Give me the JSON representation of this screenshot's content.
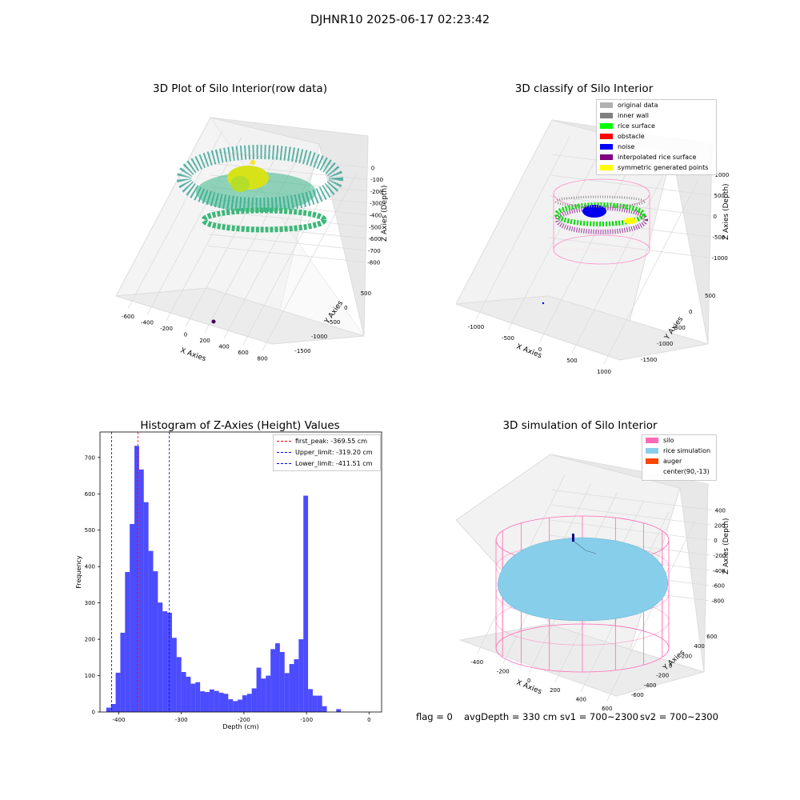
{
  "suptitle": "DJHNR10 2025-06-17 02:23:42",
  "panels": {
    "raw": {
      "title": "3D Plot of Silo Interior(row data)",
      "xlabel": "X Axies",
      "ylabel": "Y Axies",
      "zlabel": "Z Axies (Depth)",
      "xticks": [
        "-600",
        "-400",
        "-200",
        "0",
        "200",
        "400",
        "600",
        "800"
      ],
      "yticks": [
        "500",
        "0",
        "-500",
        "-1000",
        "-1500"
      ],
      "zticks": [
        "0",
        "-100",
        "-200",
        "-300",
        "-400",
        "-500",
        "-600",
        "-700",
        "-800"
      ]
    },
    "classify": {
      "title": "3D classify of Silo Interior",
      "xlabel": "X Axies",
      "ylabel": "Y Axies",
      "zlabel": "Z Axies (Depth)",
      "xticks": [
        "-1000",
        "-500",
        "0",
        "500",
        "1000"
      ],
      "yticks": [
        "500",
        "0",
        "-500",
        "-1000",
        "-1500"
      ],
      "zticks": [
        "1000",
        "500",
        "0",
        "-500",
        "-1000"
      ],
      "legend": [
        {
          "label": "original data",
          "color": "#b0b0b0"
        },
        {
          "label": "inner wall",
          "color": "#808080"
        },
        {
          "label": "rice surface",
          "color": "#00ff00"
        },
        {
          "label": "obstacle",
          "color": "#ff0000"
        },
        {
          "label": "noise",
          "color": "#0000ff"
        },
        {
          "label": "interpolated rice surface",
          "color": "#800080"
        },
        {
          "label": "symmetric generated points",
          "color": "#ffff00"
        }
      ]
    },
    "simulation": {
      "title": "3D simulation of Silo Interior",
      "xlabel": "X Axies",
      "ylabel": "Y Axies",
      "zlabel": "Z Axies (Depth)",
      "xticks": [
        "-400",
        "-200",
        "0",
        "200",
        "400",
        "600"
      ],
      "yticks": [
        "600",
        "400",
        "200",
        "0",
        "-200",
        "-400",
        "-600"
      ],
      "zticks": [
        "400",
        "200",
        "0",
        "-200",
        "-400",
        "-600",
        "-800"
      ],
      "legend": [
        {
          "label": "silo",
          "color": "#ff69b4"
        },
        {
          "label": "rice simulation",
          "color": "#87ceeb"
        },
        {
          "label": "auger",
          "color": "#ff4500"
        },
        {
          "label": "center(90,-13)",
          "color": "#ffffff"
        }
      ]
    }
  },
  "footer": {
    "flag": "flag = 0",
    "avg": "avgDepth = 330 cm",
    "sv1": "sv1 = 700~2300",
    "sv2": "sv2 = 700~2300"
  },
  "chart_data": [
    {
      "type": "scatter",
      "title": "3D Plot of Silo Interior(row data)",
      "xlabel": "X Axies",
      "ylabel": "Y Axies",
      "zlabel": "Z Axies (Depth)",
      "xlim": [
        -650,
        850
      ],
      "ylim": [
        -1600,
        600
      ],
      "zlim": [
        -850,
        50
      ]
    },
    {
      "type": "scatter",
      "title": "3D classify of Silo Interior",
      "xlabel": "X Axies",
      "ylabel": "Y Axies",
      "zlabel": "Z Axies (Depth)",
      "xlim": [
        -1100,
        1100
      ],
      "ylim": [
        -1600,
        600
      ],
      "zlim": [
        -1300,
        1300
      ],
      "series": [
        {
          "name": "original data"
        },
        {
          "name": "inner wall"
        },
        {
          "name": "rice surface"
        },
        {
          "name": "obstacle"
        },
        {
          "name": "noise"
        },
        {
          "name": "interpolated rice surface"
        },
        {
          "name": "symmetric generated points"
        }
      ]
    },
    {
      "type": "bar",
      "title": "Histogram of Z-Axies (Height) Values",
      "xlabel": "Depth (cm)",
      "ylabel": "Frequency",
      "xlim": [
        -430,
        20
      ],
      "ylim": [
        0,
        770
      ],
      "xticks": [
        -400,
        -300,
        -200,
        -100,
        0
      ],
      "yticks": [
        0,
        100,
        200,
        300,
        400,
        500,
        600,
        700
      ],
      "bin_width": 7.5,
      "bins_start": [
        -420,
        -412.5,
        -405,
        -397.5,
        -390,
        -382.5,
        -375,
        -367.5,
        -360,
        -352.5,
        -345,
        -337.5,
        -330,
        -322.5,
        -315,
        -307.5,
        -300,
        -292.5,
        -285,
        -277.5,
        -270,
        -262.5,
        -255,
        -247.5,
        -240,
        -232.5,
        -225,
        -217.5,
        -210,
        -202.5,
        -195,
        -187.5,
        -180,
        -172.5,
        -165,
        -157.5,
        -150,
        -142.5,
        -135,
        -127.5,
        -120,
        -112.5,
        -105,
        -97.5,
        -90,
        -82.5,
        -75,
        -67.5,
        -60,
        -52.5,
        -45,
        -37.5,
        -30,
        -22.5,
        -15,
        -7.5,
        0
      ],
      "values": [
        12,
        22,
        108,
        218,
        385,
        517,
        732,
        667,
        577,
        443,
        387,
        301,
        277,
        273,
        204,
        151,
        110,
        97,
        78,
        82,
        57,
        55,
        62,
        58,
        53,
        50,
        35,
        30,
        34,
        46,
        50,
        65,
        122,
        92,
        100,
        173,
        189,
        165,
        107,
        132,
        145,
        200,
        595,
        63,
        45,
        45,
        16,
        0,
        0,
        8,
        0,
        0,
        0,
        0,
        0,
        0,
        0
      ],
      "lines": [
        {
          "label": "first_peak: -369.55 cm",
          "x": -369.55,
          "color": "#ff0000"
        },
        {
          "label": "Upper_limit: -319.20 cm",
          "x": -319.2,
          "color": "#0000ff"
        },
        {
          "label": "Lower_limit: -411.51 cm",
          "x": -411.51,
          "color": "#0000ff"
        }
      ],
      "bar_color": "#0000ff"
    },
    {
      "type": "scatter",
      "title": "3D simulation of Silo Interior",
      "xlabel": "X Axies",
      "ylabel": "Y Axies",
      "zlabel": "Z Axies (Depth)",
      "xlim": [
        -500,
        700
      ],
      "ylim": [
        -700,
        700
      ],
      "zlim": [
        -900,
        500
      ],
      "series": [
        {
          "name": "silo"
        },
        {
          "name": "rice simulation"
        },
        {
          "name": "auger"
        },
        {
          "name": "center(90,-13)"
        }
      ]
    }
  ]
}
